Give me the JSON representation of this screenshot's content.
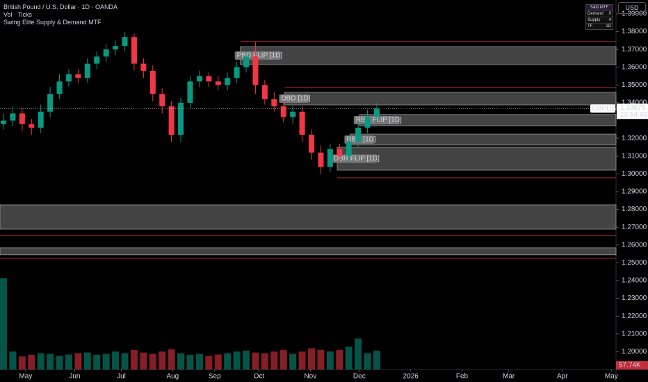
{
  "header": {
    "symbol_title": "British Pound / U.S. Dollar · 1D · OANDA",
    "volume_title": "Vol · Ticks",
    "indicator_title": "Swing Elite Supply & Demand MTF",
    "currency": "USD"
  },
  "mtf_table": {
    "title": "S&D MTF",
    "rows": [
      [
        "Demand",
        "0"
      ],
      [
        "Supply",
        "4"
      ],
      [
        "TF",
        "1D"
      ]
    ]
  },
  "chart_data": {
    "type": "candlestick",
    "xlim": [
      0,
      264
    ],
    "xticks": [
      {
        "value": 11,
        "label": "May"
      },
      {
        "value": 32,
        "label": "Jun"
      },
      {
        "value": 52,
        "label": "Jul"
      },
      {
        "value": 74,
        "label": "Aug"
      },
      {
        "value": 92,
        "label": "Sep"
      },
      {
        "value": 111,
        "label": "Oct"
      },
      {
        "value": 133,
        "label": "Nov"
      },
      {
        "value": 154,
        "label": "Dec"
      },
      {
        "value": 176,
        "label": "2026"
      },
      {
        "value": 198,
        "label": "Feb"
      },
      {
        "value": 218,
        "label": "Mar"
      },
      {
        "value": 241,
        "label": "Apr"
      },
      {
        "value": 262,
        "label": "May"
      }
    ],
    "ylim": [
      1.19,
      1.3978
    ],
    "yticks": [
      {
        "value": 1.39,
        "label": "1.39000"
      },
      {
        "value": 1.38,
        "label": "1.38000"
      },
      {
        "value": 1.37,
        "label": "1.37000"
      },
      {
        "value": 1.36,
        "label": "1.36000"
      },
      {
        "value": 1.35,
        "label": "1.35000"
      },
      {
        "value": 1.34,
        "label": "1.34000"
      },
      {
        "value": 1.32,
        "label": "1.32000"
      },
      {
        "value": 1.31,
        "label": "1.31000"
      },
      {
        "value": 1.3,
        "label": "1.30000"
      },
      {
        "value": 1.29,
        "label": "1.29000"
      },
      {
        "value": 1.28,
        "label": "1.28000"
      },
      {
        "value": 1.27,
        "label": "1.27000"
      },
      {
        "value": 1.26,
        "label": "1.26000"
      },
      {
        "value": 1.25,
        "label": "1.25000"
      },
      {
        "value": 1.24,
        "label": "1.24000"
      },
      {
        "value": 1.23,
        "label": "1.23000"
      },
      {
        "value": 1.22,
        "label": "1.22000"
      },
      {
        "value": 1.21,
        "label": "1.21000"
      },
      {
        "value": 1.2,
        "label": "1.20000"
      }
    ],
    "up_color": "#089981",
    "down_color": "#f23645",
    "x": [
      0,
      4,
      8,
      12,
      16,
      20,
      24,
      28,
      32,
      36,
      40,
      44,
      48,
      52,
      56,
      60,
      64,
      68,
      72,
      76,
      80,
      84,
      88,
      92,
      96,
      100,
      104,
      108,
      112,
      116,
      120,
      124,
      128,
      132,
      136,
      140,
      144,
      148,
      152,
      156,
      160
    ],
    "open": [
      1.328,
      1.33,
      1.334,
      1.328,
      1.326,
      1.335,
      1.345,
      1.352,
      1.356,
      1.354,
      1.362,
      1.366,
      1.37,
      1.372,
      1.377,
      1.362,
      1.358,
      1.345,
      1.338,
      1.322,
      1.34,
      1.352,
      1.355,
      1.352,
      1.35,
      1.354,
      1.36,
      1.366,
      1.35,
      1.342,
      1.338,
      1.332,
      1.335,
      1.322,
      1.312,
      1.304,
      1.314,
      1.31,
      1.318,
      1.326,
      1.332
    ],
    "high": [
      1.334,
      1.338,
      1.337,
      1.331,
      1.339,
      1.349,
      1.356,
      1.359,
      1.359,
      1.365,
      1.369,
      1.373,
      1.375,
      1.38,
      1.379,
      1.365,
      1.361,
      1.348,
      1.341,
      1.343,
      1.355,
      1.358,
      1.357,
      1.355,
      1.357,
      1.363,
      1.369,
      1.374,
      1.353,
      1.346,
      1.341,
      1.338,
      1.338,
      1.325,
      1.316,
      1.317,
      1.317,
      1.321,
      1.329,
      1.336,
      1.34
    ],
    "low": [
      1.325,
      1.327,
      1.324,
      1.322,
      1.323,
      1.332,
      1.342,
      1.349,
      1.351,
      1.351,
      1.359,
      1.363,
      1.367,
      1.369,
      1.358,
      1.354,
      1.341,
      1.334,
      1.318,
      1.318,
      1.337,
      1.349,
      1.349,
      1.347,
      1.347,
      1.351,
      1.357,
      1.345,
      1.339,
      1.335,
      1.329,
      1.328,
      1.318,
      1.308,
      1.3,
      1.301,
      1.306,
      1.306,
      1.315,
      1.323,
      1.329
    ],
    "close": [
      1.33,
      1.334,
      1.328,
      1.326,
      1.335,
      1.345,
      1.352,
      1.356,
      1.354,
      1.362,
      1.366,
      1.37,
      1.372,
      1.377,
      1.362,
      1.358,
      1.345,
      1.338,
      1.322,
      1.34,
      1.352,
      1.355,
      1.352,
      1.35,
      1.354,
      1.36,
      1.366,
      1.35,
      1.342,
      1.338,
      1.332,
      1.335,
      1.322,
      1.312,
      1.304,
      1.314,
      1.31,
      1.318,
      1.326,
      1.332,
      1.33675
    ],
    "volume": {
      "values": [
        280,
        55,
        40,
        45,
        50,
        48,
        42,
        46,
        50,
        52,
        45,
        48,
        55,
        50,
        60,
        52,
        48,
        55,
        62,
        50,
        45,
        48,
        42,
        46,
        50,
        55,
        58,
        52,
        50,
        55,
        60,
        48,
        55,
        65,
        60,
        55,
        60,
        70,
        95,
        50,
        57.74
      ],
      "lim": [
        0,
        300
      ],
      "last_label": "57.74K"
    },
    "last_price": {
      "symbol": "GBPUSD",
      "value": 1.33675,
      "label": "1.33675",
      "countdown": "13:54:40"
    },
    "zone_color": "#5a5a5a",
    "level_color": "#b22833",
    "zones": [
      {
        "label": "PBD FLIP [1D]",
        "x_start": 103,
        "top": 1.3716,
        "bottom": 1.3615
      },
      {
        "label": "DBD [1D]",
        "x_start": 122,
        "top": 1.3459,
        "bottom": 1.3388
      },
      {
        "label": "RBR FLIP [1D]",
        "x_start": 154,
        "top": 1.3334,
        "bottom": 1.3271
      },
      {
        "label": "RBR [1D]",
        "x_start": 150,
        "top": 1.3224,
        "bottom": 1.3162
      },
      {
        "label": "DBR FLIP [1D]",
        "x_start": 144.5,
        "top": 1.315,
        "bottom": 1.3021
      },
      {
        "x_start": 0,
        "top": 1.2826,
        "bottom": 1.2689
      },
      {
        "x_start": 0,
        "top": 1.2584,
        "bottom": 1.2545
      }
    ],
    "levels": [
      {
        "price": 1.3744,
        "x_start": 103
      },
      {
        "price": 1.3486,
        "x_start": 122
      },
      {
        "price": 1.2978,
        "x_start": 144.5
      },
      {
        "price": 1.2652,
        "x_start": 0
      },
      {
        "price": 1.2525,
        "x_start": 0
      }
    ]
  }
}
